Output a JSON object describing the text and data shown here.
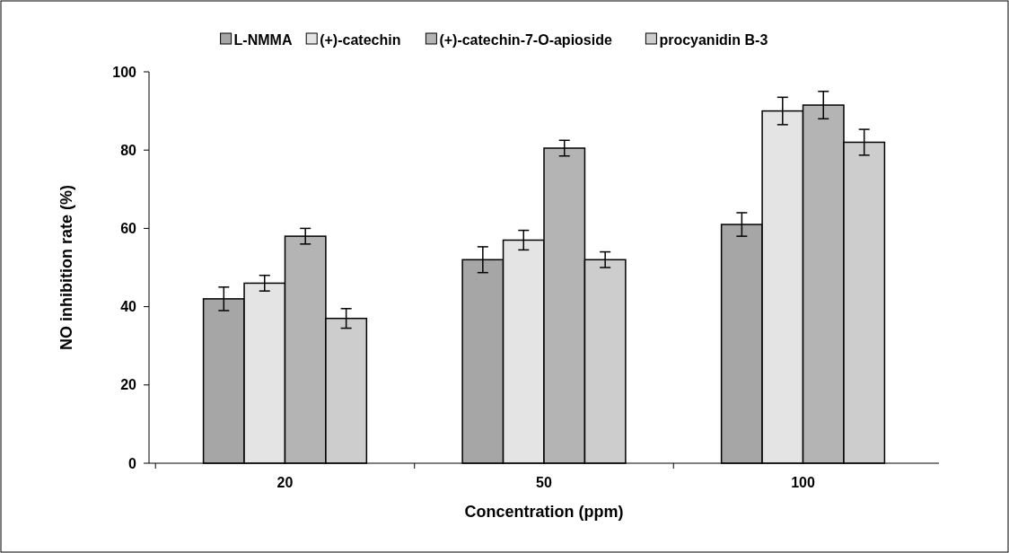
{
  "chart_data": {
    "type": "bar",
    "xlabel": "Concentration (ppm)",
    "ylabel": "NO inhibition rate (%)",
    "categories": [
      "20",
      "50",
      "100"
    ],
    "series": [
      {
        "name": "L-NMMA",
        "color": "#a6a6a6",
        "values": [
          42,
          52,
          61
        ],
        "errors": [
          3,
          3.3,
          3
        ]
      },
      {
        "name": "(+)-catechin",
        "color": "#e4e4e4",
        "values": [
          46,
          57,
          90
        ],
        "errors": [
          2,
          2.5,
          3.5
        ]
      },
      {
        "name": "(+)-catechin-7-O-apioside",
        "color": "#b4b4b4",
        "values": [
          58,
          80.5,
          91.5
        ],
        "errors": [
          2,
          2,
          3.5
        ]
      },
      {
        "name": "procyanidin B-3",
        "color": "#cdcdcd",
        "values": [
          37,
          52,
          82
        ],
        "errors": [
          2.5,
          2,
          3.3
        ]
      }
    ],
    "ylim": [
      0,
      100
    ],
    "yticks": [
      0,
      20,
      40,
      60,
      80,
      100
    ],
    "grid": false,
    "legend": "top"
  }
}
